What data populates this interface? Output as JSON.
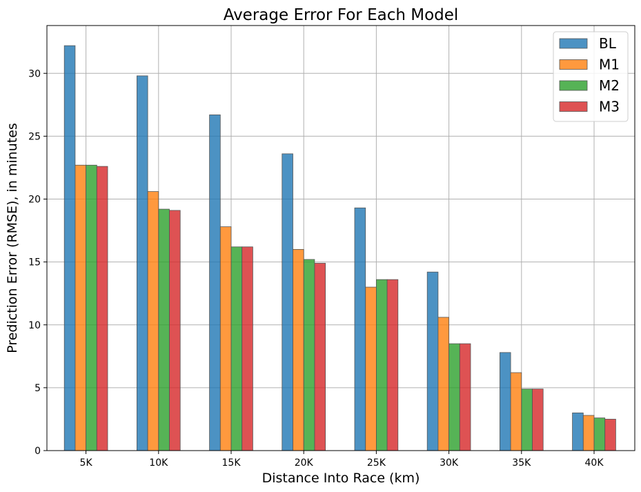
{
  "chart_data": {
    "type": "bar",
    "title": "Average Error For Each Model",
    "xlabel": "Distance Into Race (km)",
    "ylabel": "Prediction Error (RMSE), in minutes",
    "categories": [
      "5K",
      "10K",
      "15K",
      "20K",
      "25K",
      "30K",
      "35K",
      "40K"
    ],
    "series": [
      {
        "name": "BL",
        "color": "#1f77b4",
        "values": [
          32.2,
          29.8,
          26.7,
          23.6,
          19.3,
          14.2,
          7.8,
          3.0
        ]
      },
      {
        "name": "M1",
        "color": "#ff7f0e",
        "values": [
          22.7,
          20.6,
          17.8,
          16.0,
          13.0,
          10.6,
          6.2,
          2.8
        ]
      },
      {
        "name": "M2",
        "color": "#2ca02c",
        "values": [
          22.7,
          19.2,
          16.2,
          15.2,
          13.6,
          8.5,
          4.9,
          2.6
        ]
      },
      {
        "name": "M3",
        "color": "#d62728",
        "values": [
          22.6,
          19.1,
          16.2,
          14.9,
          13.6,
          8.5,
          4.9,
          2.5
        ]
      }
    ],
    "ylim": [
      0,
      33.8
    ],
    "yticks": [
      0,
      5,
      10,
      15,
      20,
      25,
      30
    ],
    "grid": true,
    "legend": "top-right"
  }
}
